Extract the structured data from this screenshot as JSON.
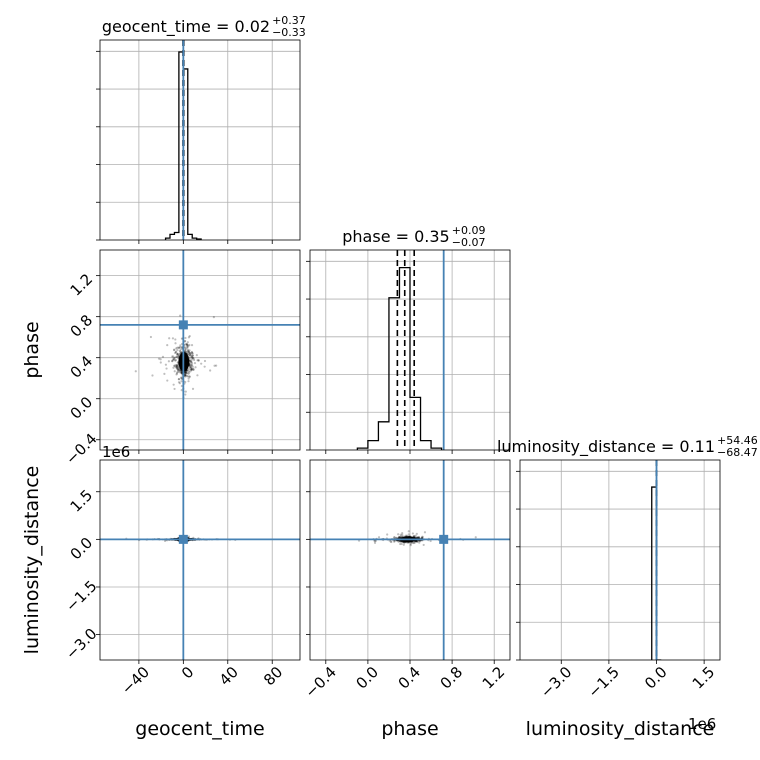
{
  "chart_data": {
    "type": "corner",
    "parameters": [
      "geocent_time",
      "phase",
      "luminosity_distance"
    ],
    "truths": {
      "geocent_time": 0.0,
      "phase": 0.72,
      "luminosity_distance": 0.0
    },
    "truth_color": "#4682b4",
    "xlim": {
      "geocent_time": [
        -75,
        105
      ],
      "phase": [
        -0.55,
        1.35
      ],
      "luminosity_distance": [
        -4300000.0,
        2000000.0
      ]
    },
    "ylim": {
      "phase": [
        -0.5,
        1.45
      ],
      "luminosity_distance": [
        -3800000.0,
        2500000.0
      ]
    },
    "ticks": {
      "geocent_time": [
        -40,
        0,
        40,
        80
      ],
      "phase": [
        -0.4,
        0.0,
        0.4,
        0.8,
        1.2
      ],
      "luminosity_distance": [
        -3.0,
        -1.5,
        0.0,
        1.5
      ]
    },
    "tick_labels": {
      "geocent_time": [
        "−40",
        "0",
        "40",
        "80"
      ],
      "phase": [
        "−0.4",
        "0.0",
        "0.4",
        "0.8",
        "1.2"
      ],
      "luminosity_distance": [
        "−3.0",
        "−1.5",
        "0.0",
        "1.5"
      ]
    },
    "offset_text": "1e6",
    "titles": [
      {
        "param": "geocent_time",
        "text": "geocent_time = 0.02",
        "plus": "+0.37",
        "minus": "−0.33"
      },
      {
        "param": "phase",
        "text": "phase = 0.35",
        "plus": "+0.09",
        "minus": "−0.07"
      },
      {
        "param": "luminosity_distance",
        "text": "luminosity_distance = 0.11",
        "plus": "+54.46",
        "minus": "−68.47"
      }
    ],
    "quantiles": {
      "geocent_time": [
        -0.31,
        0.02,
        0.39
      ],
      "phase": [
        0.28,
        0.35,
        0.44
      ],
      "luminosity_distance": [
        -68.36,
        0.11,
        54.57
      ]
    },
    "histograms": {
      "geocent_time": {
        "bin_edges": [
          -16,
          -12,
          -8,
          -4,
          0,
          4,
          8,
          12,
          16
        ],
        "counts": [
          0.01,
          0.03,
          0.04,
          1.0,
          0.91,
          0.03,
          0.01,
          0.005
        ]
      },
      "phase": {
        "bin_edges": [
          -0.1,
          0.0,
          0.1,
          0.2,
          0.3,
          0.4,
          0.5,
          0.6,
          0.7
        ],
        "counts": [
          0.01,
          0.05,
          0.15,
          0.81,
          0.97,
          0.28,
          0.05,
          0.01
        ]
      },
      "luminosity_distance": {
        "bin_edges": [
          -150000.0,
          0.0,
          150000.0
        ],
        "counts": [
          0.92,
          0.0
        ]
      }
    },
    "scatter_centers": {
      "phase_vs_geocent_time": {
        "x": 0.5,
        "y": 0.36,
        "sx": 4.0,
        "sy": 0.08
      },
      "luminosity_distance_vs_geocent_time": {
        "x": 0.0,
        "y": 0.0,
        "sx": 5.0,
        "sy": 8000
      },
      "luminosity_distance_vs_phase": {
        "x": 0.38,
        "y": 0.0,
        "sx": 0.06,
        "sy": 40000
      }
    },
    "grid": true
  }
}
